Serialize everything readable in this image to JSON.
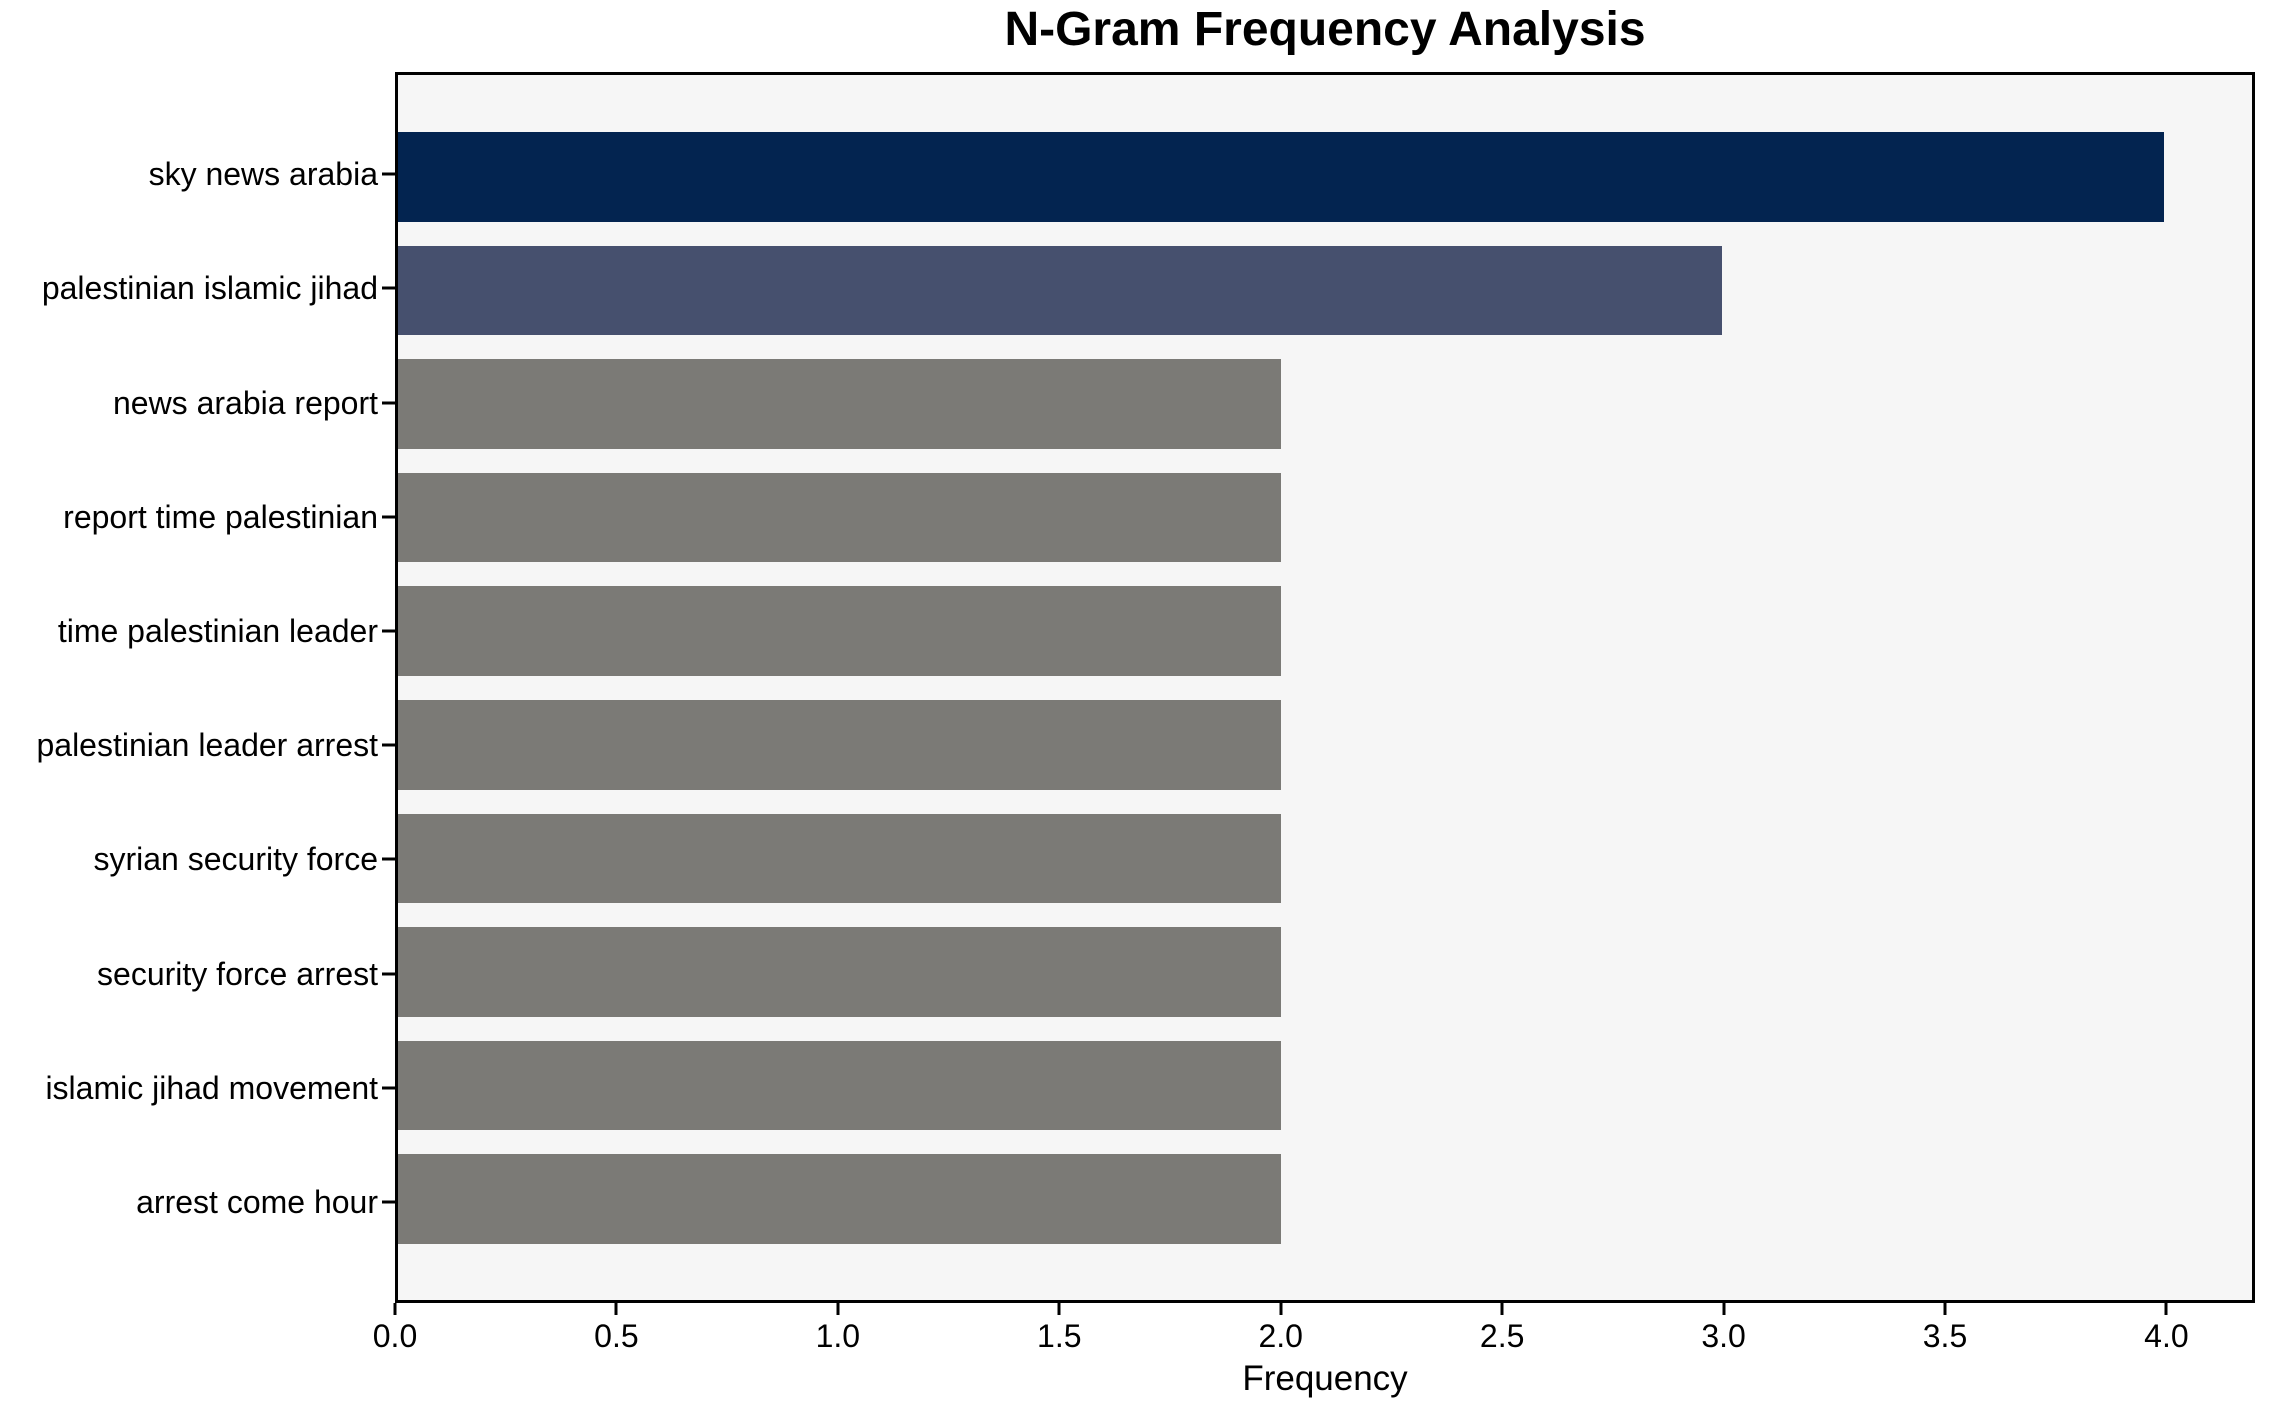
{
  "figure": {
    "background": "#ffffff",
    "text_color": "#000000"
  },
  "chart_data": {
    "type": "bar",
    "orientation": "horizontal",
    "title": "N-Gram Frequency Analysis",
    "xlabel": "Frequency",
    "ylabel": "",
    "categories": [
      "sky news arabia",
      "palestinian islamic jihad",
      "news arabia report",
      "report time palestinian",
      "time palestinian leader",
      "palestinian leader arrest",
      "syrian security force",
      "security force arrest",
      "islamic jihad movement",
      "arrest come hour"
    ],
    "values": [
      4,
      3,
      2,
      2,
      2,
      2,
      2,
      2,
      2,
      2
    ],
    "bar_colors": [
      "#032450",
      "#46506e",
      "#7b7a76",
      "#7b7a76",
      "#7b7a76",
      "#7b7a76",
      "#7b7a76",
      "#7b7a76",
      "#7b7a76",
      "#7b7a76"
    ],
    "xlim": [
      0,
      4.2
    ],
    "xticks": [
      0.0,
      0.5,
      1.0,
      1.5,
      2.0,
      2.5,
      3.0,
      3.5,
      4.0
    ],
    "xtick_labels": [
      "0.0",
      "0.5",
      "1.0",
      "1.5",
      "2.0",
      "2.5",
      "3.0",
      "3.5",
      "4.0"
    ],
    "grid": false,
    "legend": false,
    "plot_background": "#f6f6f6",
    "frame_color": "#000000",
    "tick_color": "#000000"
  }
}
